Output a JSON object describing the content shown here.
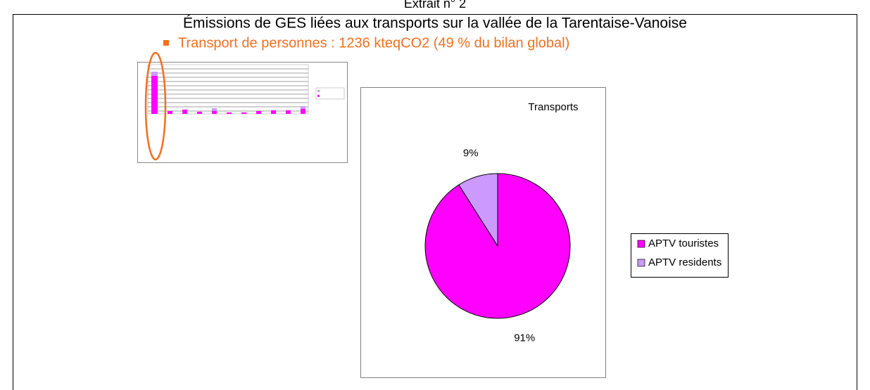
{
  "header": {
    "caption": "Extrait n° 2",
    "title": "Émissions de GES liées aux transports sur la vallée de la Tarentaise-Vanoise",
    "subtitle": "Transport de personnes :  1236 kteqCO2  (49 % du bilan global)"
  },
  "chart_data": {
    "type": "pie",
    "title": "Transports",
    "categories": [
      "APTV touristes",
      "APTV residents"
    ],
    "values": [
      91,
      9
    ],
    "value_labels": [
      "91%",
      "9%"
    ],
    "colors": [
      "#ff00ff",
      "#cc99ff"
    ]
  }
}
